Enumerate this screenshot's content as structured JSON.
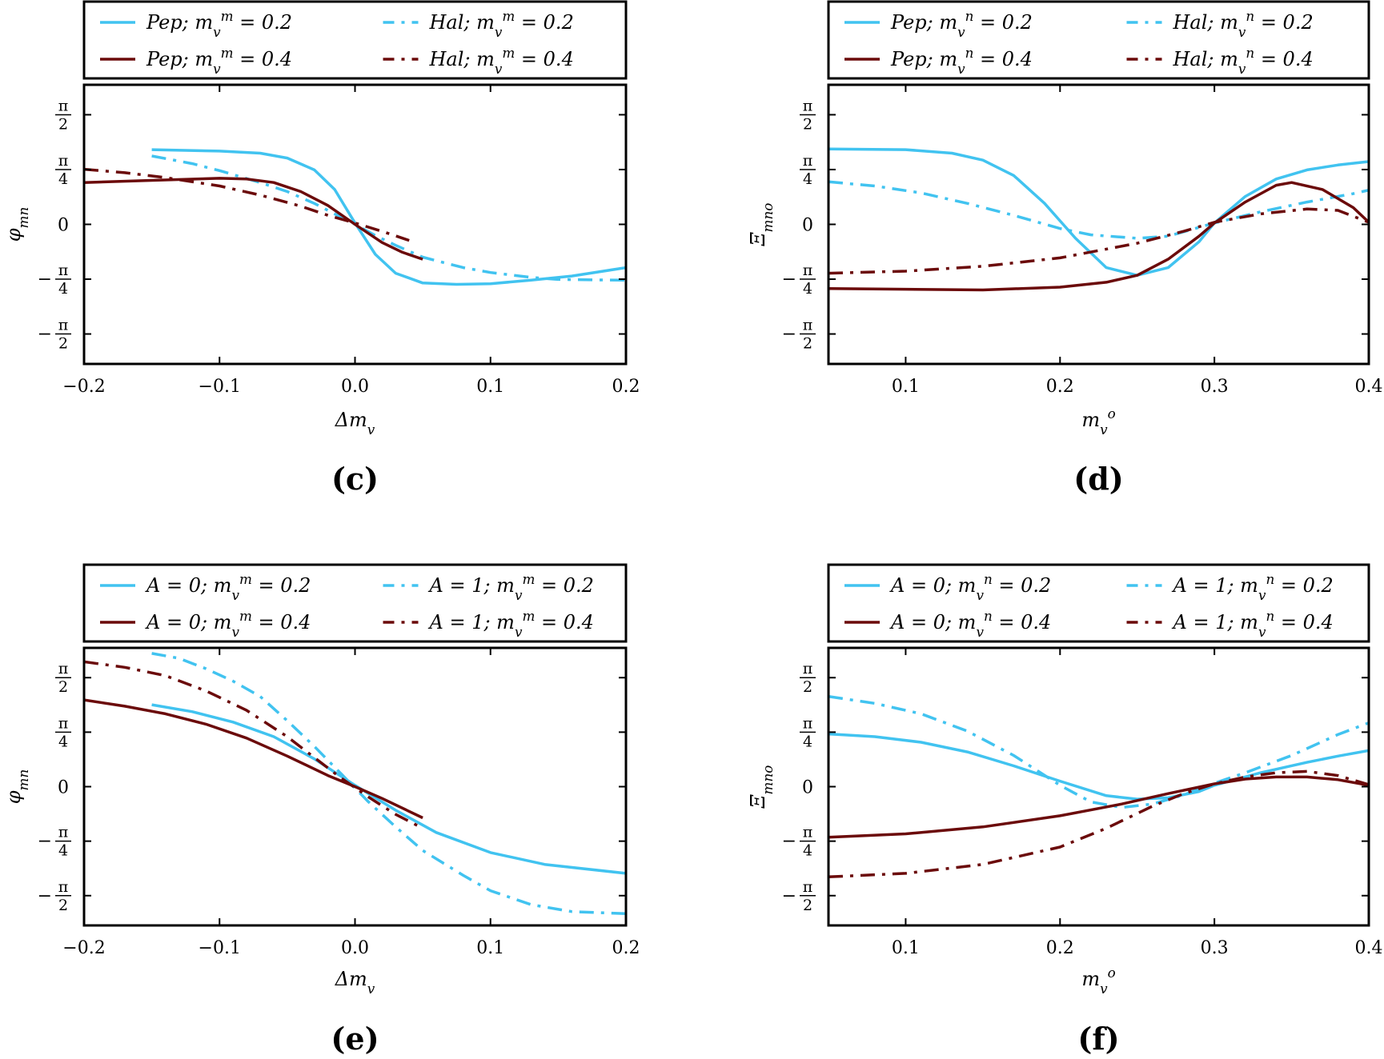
{
  "colors": {
    "light": "#41c3f0",
    "dark": "#6b0a0a"
  },
  "chart_data": [
    {
      "id": "c",
      "type": "line",
      "panel_label": "(c)",
      "xlabel": "Δm_v",
      "ylabel": "φ_mn",
      "xlim": [
        -0.2,
        0.2
      ],
      "ylim": [
        -2.0,
        2.0
      ],
      "xticks": [
        -0.2,
        -0.1,
        0.0,
        0.1,
        0.2
      ],
      "xtick_labels": [
        "−0.2",
        "−0.1",
        "0.0",
        "0.1",
        "0.2"
      ],
      "ytick_labels": [
        "π/2",
        "π/4",
        "0",
        "−π/4",
        "−π/2"
      ],
      "grid": false,
      "legend_position": "top",
      "series": [
        {
          "name": "Pep; m_v^m = 0.2",
          "color": "light",
          "dash": "solid",
          "x": [
            -0.15,
            -0.1,
            -0.07,
            -0.05,
            -0.03,
            -0.015,
            0,
            0.015,
            0.03,
            0.05,
            0.075,
            0.1,
            0.13,
            0.16,
            0.2
          ],
          "y": [
            1.07,
            1.05,
            1.02,
            0.95,
            0.78,
            0.5,
            0.02,
            -0.43,
            -0.7,
            -0.84,
            -0.86,
            -0.85,
            -0.8,
            -0.74,
            -0.62
          ]
        },
        {
          "name": "Hal; m_v^m = 0.2",
          "color": "light",
          "dash": "dashdot",
          "x": [
            -0.15,
            -0.12,
            -0.1,
            -0.07,
            -0.05,
            -0.03,
            -0.015,
            0,
            0.015,
            0.03,
            0.05,
            0.08,
            0.1,
            0.13,
            0.15,
            0.2
          ],
          "y": [
            0.98,
            0.87,
            0.77,
            0.6,
            0.47,
            0.3,
            0.15,
            0.0,
            -0.16,
            -0.3,
            -0.47,
            -0.62,
            -0.69,
            -0.76,
            -0.79,
            -0.8
          ]
        },
        {
          "name": "Pep; m_v^m = 0.4",
          "color": "dark",
          "dash": "solid",
          "x": [
            -0.2,
            -0.15,
            -0.1,
            -0.08,
            -0.06,
            -0.04,
            -0.02,
            0,
            0.02,
            0.035,
            0.05
          ],
          "y": [
            0.6,
            0.63,
            0.66,
            0.65,
            0.6,
            0.47,
            0.27,
            0.0,
            -0.26,
            -0.4,
            -0.5
          ]
        },
        {
          "name": "Hal; m_v^m = 0.4",
          "color": "dark",
          "dash": "dashdot",
          "x": [
            -0.2,
            -0.17,
            -0.14,
            -0.1,
            -0.07,
            -0.04,
            -0.02,
            0,
            0.02,
            0.04
          ],
          "y": [
            0.79,
            0.74,
            0.67,
            0.55,
            0.42,
            0.26,
            0.13,
            0.02,
            -0.1,
            -0.23
          ]
        }
      ]
    },
    {
      "id": "d",
      "type": "line",
      "panel_label": "(d)",
      "xlabel": "m_v^o",
      "ylabel": "Ξ_mno",
      "xlim": [
        0.05,
        0.4
      ],
      "ylim": [
        -2.0,
        2.0
      ],
      "xticks": [
        0.1,
        0.2,
        0.3,
        0.4
      ],
      "xtick_labels": [
        "0.1",
        "0.2",
        "0.3",
        "0.4"
      ],
      "ytick_labels": [
        "π/2",
        "π/4",
        "0",
        "−π/4",
        "−π/2"
      ],
      "grid": false,
      "legend_position": "top",
      "series": [
        {
          "name": "Pep; m_v^n = 0.2",
          "color": "light",
          "dash": "solid",
          "x": [
            0.05,
            0.1,
            0.13,
            0.15,
            0.17,
            0.19,
            0.2,
            0.21,
            0.23,
            0.25,
            0.27,
            0.29,
            0.3,
            0.32,
            0.34,
            0.36,
            0.38,
            0.4
          ],
          "y": [
            1.08,
            1.07,
            1.02,
            0.92,
            0.7,
            0.3,
            0.05,
            -0.2,
            -0.62,
            -0.73,
            -0.62,
            -0.25,
            0.02,
            0.4,
            0.65,
            0.78,
            0.85,
            0.9
          ]
        },
        {
          "name": "Hal; m_v^n = 0.2",
          "color": "light",
          "dash": "dashdot",
          "x": [
            0.05,
            0.08,
            0.11,
            0.14,
            0.17,
            0.2,
            0.22,
            0.25,
            0.27,
            0.3,
            0.33,
            0.36,
            0.39,
            0.4
          ],
          "y": [
            0.61,
            0.55,
            0.45,
            0.3,
            0.13,
            -0.06,
            -0.15,
            -0.2,
            -0.17,
            0.02,
            0.18,
            0.32,
            0.44,
            0.49
          ]
        },
        {
          "name": "Pep; m_v^n = 0.4",
          "color": "dark",
          "dash": "solid",
          "x": [
            0.05,
            0.1,
            0.15,
            0.2,
            0.23,
            0.25,
            0.27,
            0.29,
            0.3,
            0.32,
            0.34,
            0.35,
            0.37,
            0.39,
            0.4
          ],
          "y": [
            -0.92,
            -0.93,
            -0.94,
            -0.9,
            -0.83,
            -0.73,
            -0.5,
            -0.17,
            0.02,
            0.32,
            0.56,
            0.6,
            0.5,
            0.24,
            0.03
          ]
        },
        {
          "name": "Hal; m_v^n = 0.4",
          "color": "dark",
          "dash": "dashdot",
          "x": [
            0.05,
            0.1,
            0.15,
            0.2,
            0.25,
            0.28,
            0.3,
            0.33,
            0.36,
            0.38,
            0.4
          ],
          "y": [
            -0.7,
            -0.67,
            -0.6,
            -0.48,
            -0.27,
            -0.1,
            0.03,
            0.15,
            0.22,
            0.2,
            0.03
          ]
        }
      ]
    },
    {
      "id": "e",
      "type": "line",
      "panel_label": "(e)",
      "xlabel": "Δm_v",
      "ylabel": "φ_mn",
      "xlim": [
        -0.2,
        0.2
      ],
      "ylim": [
        -2.0,
        2.0
      ],
      "xticks": [
        -0.2,
        -0.1,
        0.0,
        0.1,
        0.2
      ],
      "xtick_labels": [
        "−0.2",
        "−0.1",
        "0.0",
        "0.1",
        "0.2"
      ],
      "ytick_labels": [
        "π/2",
        "π/4",
        "0",
        "−π/4",
        "−π/2"
      ],
      "grid": false,
      "legend_position": "top",
      "series": [
        {
          "name": "A = 0; m_v^m = 0.2",
          "color": "light",
          "dash": "solid",
          "x": [
            -0.15,
            -0.12,
            -0.09,
            -0.06,
            -0.03,
            0,
            0.03,
            0.06,
            0.1,
            0.14,
            0.2
          ],
          "y": [
            1.18,
            1.08,
            0.93,
            0.72,
            0.4,
            0.02,
            -0.34,
            -0.66,
            -0.95,
            -1.12,
            -1.25
          ]
        },
        {
          "name": "A = 1; m_v^m = 0.2",
          "color": "light",
          "dash": "dashdot",
          "x": [
            -0.15,
            -0.13,
            -0.11,
            -0.09,
            -0.07,
            -0.05,
            -0.03,
            -0.01,
            0.01,
            0.03,
            0.05,
            0.08,
            0.1,
            0.13,
            0.16,
            0.2
          ],
          "y": [
            1.92,
            1.85,
            1.7,
            1.52,
            1.3,
            0.95,
            0.58,
            0.18,
            -0.22,
            -0.58,
            -0.92,
            -1.28,
            -1.5,
            -1.7,
            -1.8,
            -1.83
          ]
        },
        {
          "name": "A = 0; m_v^m = 0.4",
          "color": "dark",
          "dash": "solid",
          "x": [
            -0.2,
            -0.17,
            -0.14,
            -0.11,
            -0.08,
            -0.05,
            -0.02,
            0,
            0.02,
            0.05
          ],
          "y": [
            1.25,
            1.16,
            1.05,
            0.9,
            0.7,
            0.44,
            0.16,
            0.0,
            -0.17,
            -0.45
          ]
        },
        {
          "name": "A = 1; m_v^m = 0.4",
          "color": "dark",
          "dash": "dashdot",
          "x": [
            -0.2,
            -0.17,
            -0.14,
            -0.11,
            -0.08,
            -0.05,
            -0.03,
            -0.01,
            0.01,
            0.03,
            0.05
          ],
          "y": [
            1.8,
            1.72,
            1.6,
            1.38,
            1.1,
            0.72,
            0.42,
            0.12,
            -0.15,
            -0.4,
            -0.6
          ]
        }
      ]
    },
    {
      "id": "f",
      "type": "line",
      "panel_label": "(f)",
      "xlabel": "m_v^o",
      "ylabel": "Ξ_mno",
      "xlim": [
        0.05,
        0.4
      ],
      "ylim": [
        -2.0,
        2.0
      ],
      "xticks": [
        0.1,
        0.2,
        0.3,
        0.4
      ],
      "xtick_labels": [
        "0.1",
        "0.2",
        "0.3",
        "0.4"
      ],
      "ytick_labels": [
        "π/2",
        "π/4",
        "0",
        "−π/4",
        "−π/2"
      ],
      "grid": false,
      "legend_position": "top",
      "series": [
        {
          "name": "A = 0; m_v^n = 0.2",
          "color": "light",
          "dash": "solid",
          "x": [
            0.05,
            0.08,
            0.11,
            0.14,
            0.17,
            0.2,
            0.23,
            0.25,
            0.27,
            0.29,
            0.3,
            0.33,
            0.36,
            0.38,
            0.4
          ],
          "y": [
            0.76,
            0.72,
            0.64,
            0.5,
            0.3,
            0.08,
            -0.13,
            -0.18,
            -0.16,
            -0.07,
            0.02,
            0.2,
            0.35,
            0.44,
            0.52
          ]
        },
        {
          "name": "A = 1; m_v^n = 0.2",
          "color": "light",
          "dash": "dashdot",
          "x": [
            0.05,
            0.08,
            0.11,
            0.14,
            0.17,
            0.2,
            0.22,
            0.24,
            0.26,
            0.28,
            0.3,
            0.32,
            0.35,
            0.38,
            0.4
          ],
          "y": [
            1.3,
            1.2,
            1.05,
            0.8,
            0.45,
            0.02,
            -0.22,
            -0.3,
            -0.25,
            -0.12,
            0.05,
            0.2,
            0.45,
            0.75,
            0.92
          ]
        },
        {
          "name": "A = 0; m_v^n = 0.4",
          "color": "dark",
          "dash": "solid",
          "x": [
            0.05,
            0.1,
            0.15,
            0.2,
            0.24,
            0.27,
            0.3,
            0.32,
            0.34,
            0.36,
            0.38,
            0.4
          ],
          "y": [
            -0.73,
            -0.68,
            -0.58,
            -0.42,
            -0.25,
            -0.1,
            0.04,
            0.11,
            0.14,
            0.14,
            0.1,
            0.02
          ]
        },
        {
          "name": "A = 1; m_v^n = 0.4",
          "color": "dark",
          "dash": "dashdot",
          "x": [
            0.05,
            0.1,
            0.15,
            0.2,
            0.23,
            0.26,
            0.28,
            0.3,
            0.32,
            0.34,
            0.36,
            0.38,
            0.4
          ],
          "y": [
            -1.3,
            -1.25,
            -1.12,
            -0.87,
            -0.6,
            -0.28,
            -0.1,
            0.04,
            0.14,
            0.2,
            0.22,
            0.16,
            0.03
          ]
        }
      ]
    }
  ]
}
